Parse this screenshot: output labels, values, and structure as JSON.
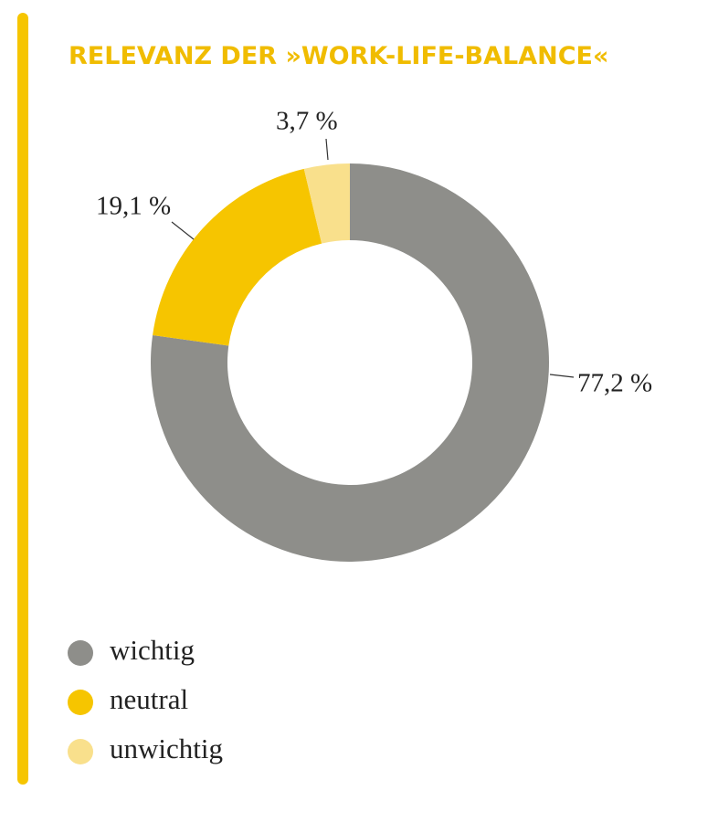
{
  "chart_data": {
    "type": "donut",
    "title": "RELEVANZ DER »WORK-LIFE-BALANCE«",
    "categories": [
      "wichtig",
      "neutral",
      "unwichtig"
    ],
    "values": [
      77.2,
      19.1,
      3.7
    ],
    "value_labels": [
      "77,2 %",
      "19,1 %",
      "3,7 %"
    ],
    "colors": [
      "#8e8e8a",
      "#f6c500",
      "#f9e08c"
    ],
    "title_color": "#f0bc00"
  }
}
